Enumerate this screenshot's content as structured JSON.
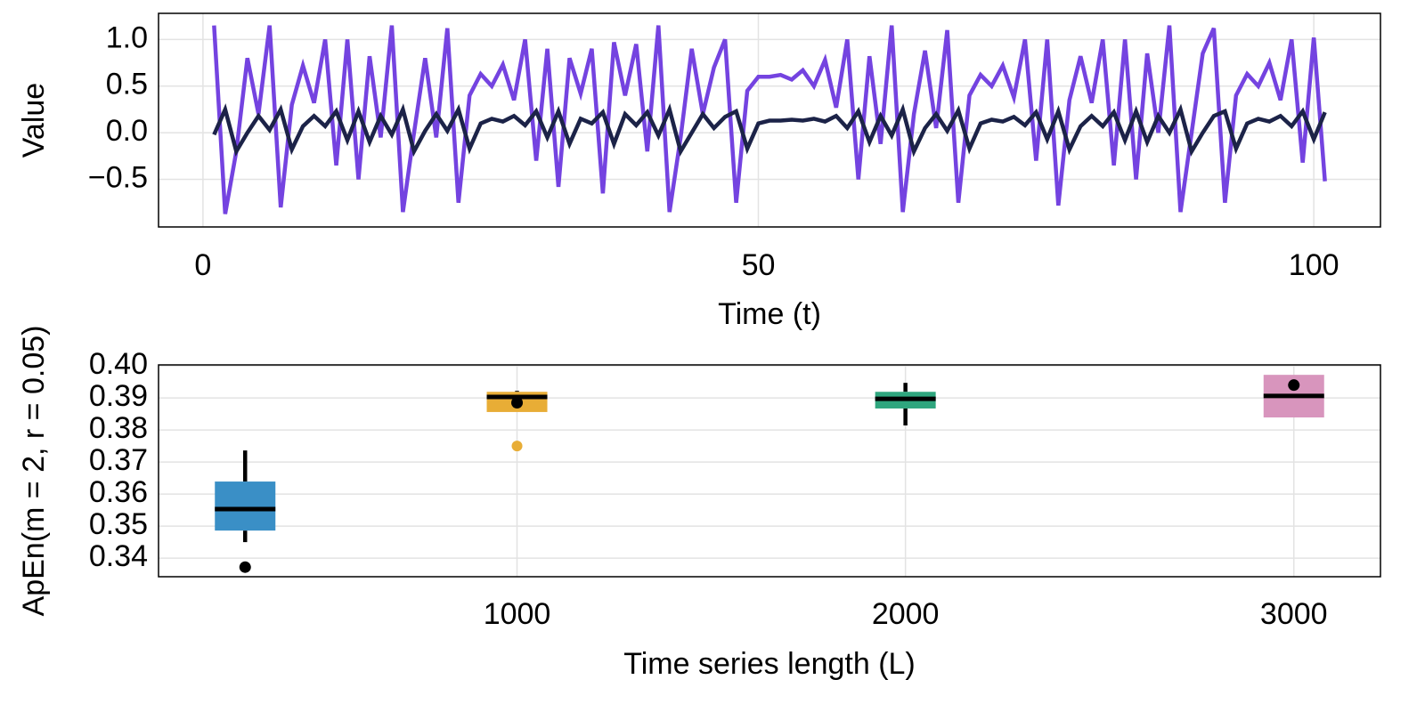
{
  "chart_data": [
    {
      "type": "line",
      "x_label": "Time (t)",
      "y_label": "Value",
      "x": [
        1,
        2,
        3,
        4,
        5,
        6,
        7,
        8,
        9,
        10,
        11,
        12,
        13,
        14,
        15,
        16,
        17,
        18,
        19,
        20,
        21,
        22,
        23,
        24,
        25,
        26,
        27,
        28,
        29,
        30,
        31,
        32,
        33,
        34,
        35,
        36,
        37,
        38,
        39,
        40,
        41,
        42,
        43,
        44,
        45,
        46,
        47,
        48,
        49,
        50,
        51,
        52,
        53,
        54,
        55,
        56,
        57,
        58,
        59,
        60,
        61,
        62,
        63,
        64,
        65,
        66,
        67,
        68,
        69,
        70,
        71,
        72,
        73,
        74,
        75,
        76,
        77,
        78,
        79,
        80,
        81,
        82,
        83,
        84,
        85,
        86,
        87,
        88,
        89,
        90,
        91,
        92,
        93,
        94,
        95,
        96,
        97,
        98,
        99,
        100,
        101
      ],
      "series": [
        {
          "color": "#7443e0",
          "values": [
            1.15,
            -0.87,
            -0.2,
            0.8,
            0.2,
            1.15,
            -0.8,
            0.3,
            0.72,
            0.32,
            1.0,
            -0.35,
            1.0,
            -0.5,
            0.82,
            -0.05,
            1.15,
            -0.85,
            0.0,
            0.8,
            -0.05,
            1.12,
            -0.75,
            0.4,
            0.63,
            0.5,
            0.73,
            0.35,
            1.0,
            -0.3,
            0.9,
            -0.58,
            0.8,
            0.42,
            0.9,
            -0.65,
            0.97,
            0.4,
            0.95,
            -0.2,
            1.15,
            -0.85,
            -0.05,
            0.9,
            0.2,
            0.7,
            1.0,
            -0.75,
            0.45,
            0.6,
            0.6,
            0.62,
            0.57,
            0.67,
            0.5,
            0.78,
            0.27,
            1.0,
            -0.5,
            0.82,
            -0.12,
            1.15,
            -0.85,
            0.2,
            0.88,
            0.05,
            1.1,
            -0.75,
            0.4,
            0.62,
            0.5,
            0.72,
            0.38,
            1.0,
            -0.3,
            1.0,
            -0.78,
            0.35,
            0.82,
            0.32,
            1.0,
            -0.35,
            1.0,
            -0.5,
            0.85,
            0.0,
            1.15,
            -0.85,
            0.0,
            0.85,
            1.12,
            -0.75,
            0.4,
            0.63,
            0.5,
            0.75,
            0.35,
            1.0,
            -0.32,
            1.02,
            -0.52
          ]
        },
        {
          "color": "#1c2348",
          "values": [
            -0.02,
            0.25,
            -0.2,
            0.0,
            0.18,
            0.03,
            0.25,
            -0.18,
            0.07,
            0.18,
            0.07,
            0.23,
            -0.08,
            0.23,
            -0.1,
            0.18,
            -0.02,
            0.25,
            -0.2,
            0.02,
            0.2,
            0.02,
            0.25,
            -0.17,
            0.1,
            0.15,
            0.12,
            0.18,
            0.08,
            0.23,
            -0.05,
            0.23,
            -0.12,
            0.15,
            0.1,
            0.22,
            -0.12,
            0.2,
            0.08,
            0.22,
            -0.03,
            0.25,
            -0.2,
            0.0,
            0.2,
            0.05,
            0.17,
            0.23,
            -0.17,
            0.1,
            0.13,
            0.13,
            0.14,
            0.13,
            0.15,
            0.12,
            0.18,
            0.05,
            0.23,
            -0.1,
            0.18,
            -0.03,
            0.25,
            -0.2,
            0.05,
            0.2,
            0.02,
            0.24,
            -0.17,
            0.1,
            0.14,
            0.12,
            0.17,
            0.08,
            0.22,
            -0.07,
            0.23,
            -0.18,
            0.07,
            0.18,
            0.07,
            0.22,
            -0.08,
            0.23,
            -0.1,
            0.18,
            0.0,
            0.25,
            -0.2,
            0.0,
            0.18,
            0.23,
            -0.17,
            0.1,
            0.15,
            0.12,
            0.18,
            0.07,
            0.23,
            -0.07,
            0.22
          ]
        }
      ],
      "xlim": [
        -4,
        106
      ],
      "xticks": [
        0,
        50,
        100
      ],
      "ylim": [
        -1.01,
        1.28
      ],
      "yticks": [
        {
          "value": -0.5,
          "label": "−0.5"
        },
        {
          "value": 0,
          "label": "0.0"
        },
        0.5,
        {
          "value": 1,
          "label": "1.0"
        }
      ],
      "grid": true
    },
    {
      "type": "box",
      "x_label": "Time series length (L)",
      "y_label": "ApEn(m = 2, r = 0.05)",
      "boxes": [
        {
          "x": 300,
          "color": "#3a8fc6",
          "whisker_low": 0.345,
          "q1": 0.3486,
          "median": 0.3553,
          "q3": 0.3639,
          "whisker_high": 0.3736
        },
        {
          "x": 1000,
          "color": "#e8ad36",
          "whisker_low": 0.3856,
          "q1": 0.3856,
          "median": 0.3903,
          "q3": 0.3919,
          "whisker_high": 0.3922,
          "outliers": [
            0.375
          ]
        },
        {
          "x": 2000,
          "color": "#2fa67e",
          "whisker_low": 0.3814,
          "q1": 0.3867,
          "median": 0.3897,
          "q3": 0.3919,
          "whisker_high": 0.3947
        },
        {
          "x": 3000,
          "color": "#d895bd",
          "whisker_low": 0.3839,
          "q1": 0.3839,
          "median": 0.3906,
          "q3": 0.3972,
          "whisker_high": 0.3972
        }
      ],
      "points": {
        "color": "#000000",
        "x": [
          300,
          1000,
          3000
        ],
        "y": [
          0.3372,
          0.3885,
          0.394
        ]
      },
      "xlim": [
        77,
        3223
      ],
      "xticks": [
        1000,
        2000,
        3000
      ],
      "ylim": [
        0.3342,
        0.4003
      ],
      "yticks": [
        0.34,
        0.35,
        0.36,
        0.37,
        0.38,
        0.39,
        {
          "value": 0.4,
          "label": "0.40"
        }
      ],
      "grid": true
    }
  ]
}
